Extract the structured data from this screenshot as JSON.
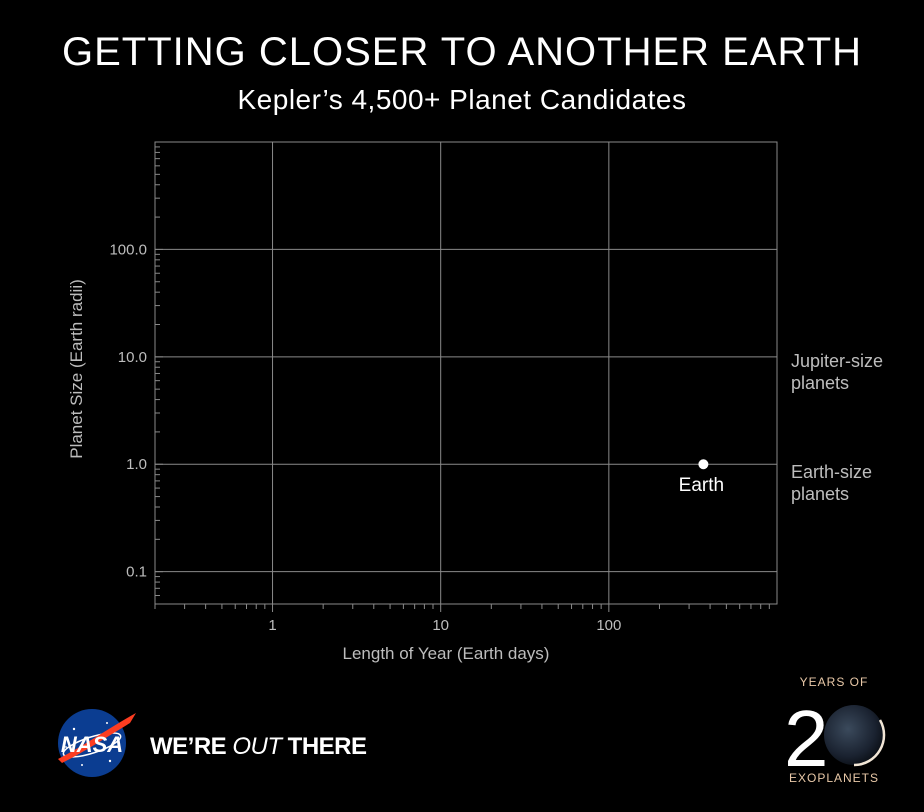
{
  "title": "GETTING CLOSER TO ANOTHER EARTH",
  "subtitle": "Kepler’s 4,500+ Planet Candidates",
  "side_labels": {
    "jupiter_line1": "Jupiter-size",
    "jupiter_line2": "planets",
    "earth_line1": "Earth-size",
    "earth_line2": "planets"
  },
  "footer": {
    "tagline_we": "WE’RE ",
    "tagline_out": "OUT",
    "tagline_there": " THERE",
    "nasa_logo_text": "NASA",
    "badge_top": "YEARS OF",
    "badge_number": "20",
    "badge_bottom": "EXOPLANETS"
  },
  "colors": {
    "background": "#000000",
    "grid": "#8a8a8a",
    "axis_text": "#bdbdbd",
    "point": "#ffffff",
    "nasa_blue": "#0b3d91",
    "nasa_red": "#fc3d21",
    "badge_text": "#e9c9a8"
  },
  "chart_data": {
    "type": "scatter",
    "title": "GETTING CLOSER TO ANOTHER EARTH",
    "subtitle": "Kepler’s 4,500+ Planet Candidates",
    "xlabel": "Length of Year (Earth days)",
    "ylabel": "Planet Size (Earth radii)",
    "x_scale": "log",
    "y_scale": "log",
    "xlim": [
      0.2,
      1000
    ],
    "ylim": [
      0.05,
      1000
    ],
    "x_ticks": [
      1,
      10,
      100
    ],
    "x_tick_labels": [
      "1",
      "10",
      "100"
    ],
    "y_ticks": [
      0.1,
      1,
      10,
      100
    ],
    "y_tick_labels": [
      "0.1",
      "1.0",
      "10.0",
      "100.0"
    ],
    "grid": true,
    "series": [
      {
        "points": [
          {
            "x": 365,
            "y": 1.0,
            "label": "Earth"
          }
        ]
      }
    ]
  }
}
